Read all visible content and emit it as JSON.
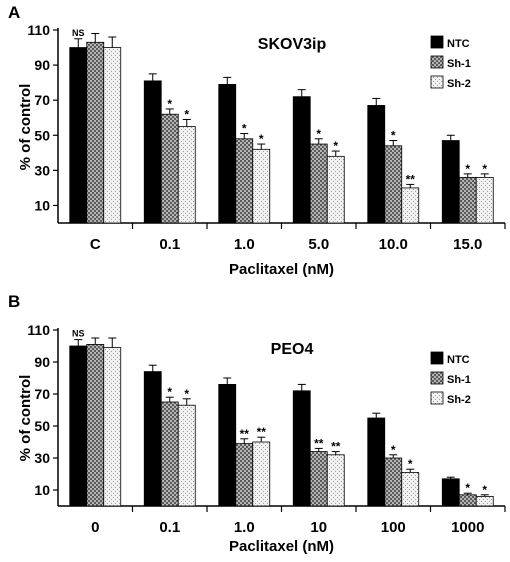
{
  "chart_data": [
    {
      "type": "bar",
      "panel": "A",
      "title": "SKOV3ip",
      "xlabel": "Paclitaxel (nM)",
      "ylabel": "% of control",
      "ylim": [
        0,
        110
      ],
      "yticks": [
        "10",
        "30",
        "50",
        "70",
        "90",
        "110"
      ],
      "categories": [
        "C",
        "0.1",
        "1.0",
        "5.0",
        "10.0",
        "15.0"
      ],
      "legend_position": "top-right",
      "series": [
        {
          "name": "NTC",
          "color": "#000000",
          "pattern": "solid",
          "values": [
            100,
            81,
            79,
            72,
            67,
            47
          ],
          "errors": [
            5,
            4,
            4,
            4,
            4,
            3
          ]
        },
        {
          "name": "Sh-1",
          "color": "#8c8c8c",
          "pattern": "checker",
          "values": [
            103,
            62,
            48,
            45,
            44,
            26
          ],
          "errors": [
            5,
            3,
            3,
            3,
            3,
            2
          ]
        },
        {
          "name": "Sh-2",
          "color": "#e6e6e6",
          "pattern": "dots",
          "values": [
            100,
            55,
            42,
            38,
            20,
            26
          ],
          "errors": [
            6,
            4,
            3,
            3,
            2,
            2
          ]
        }
      ],
      "significance": [
        [
          "NS",
          "",
          ""
        ],
        [
          "",
          "*",
          "*"
        ],
        [
          "",
          "*",
          "*"
        ],
        [
          "",
          "*",
          "*"
        ],
        [
          "",
          "*",
          "**"
        ],
        [
          "",
          "*",
          "*"
        ]
      ]
    },
    {
      "type": "bar",
      "panel": "B",
      "title": "PEO4",
      "xlabel": "Paclitaxel (nM)",
      "ylabel": "% of control",
      "ylim": [
        0,
        110
      ],
      "yticks": [
        "10",
        "30",
        "50",
        "70",
        "90",
        "110"
      ],
      "categories": [
        "0",
        "0.1",
        "1.0",
        "10",
        "100",
        "1000"
      ],
      "legend_position": "right",
      "series": [
        {
          "name": "NTC",
          "color": "#000000",
          "pattern": "solid",
          "values": [
            100,
            84,
            76,
            72,
            55,
            17
          ],
          "errors": [
            4,
            4,
            4,
            4,
            3,
            1
          ]
        },
        {
          "name": "Sh-1",
          "color": "#8c8c8c",
          "pattern": "checker",
          "values": [
            101,
            65,
            39,
            34,
            30,
            7
          ],
          "errors": [
            4,
            3,
            3,
            2,
            2,
            1
          ]
        },
        {
          "name": "Sh-2",
          "color": "#e6e6e6",
          "pattern": "dots",
          "values": [
            99,
            63,
            40,
            32,
            21,
            6
          ],
          "errors": [
            6,
            4,
            3,
            2,
            2,
            1
          ]
        }
      ],
      "significance": [
        [
          "NS",
          "",
          ""
        ],
        [
          "",
          "*",
          "*"
        ],
        [
          "",
          "**",
          "**"
        ],
        [
          "",
          "**",
          "**"
        ],
        [
          "",
          "*",
          "*"
        ],
        [
          "",
          "*",
          "*"
        ]
      ]
    }
  ]
}
